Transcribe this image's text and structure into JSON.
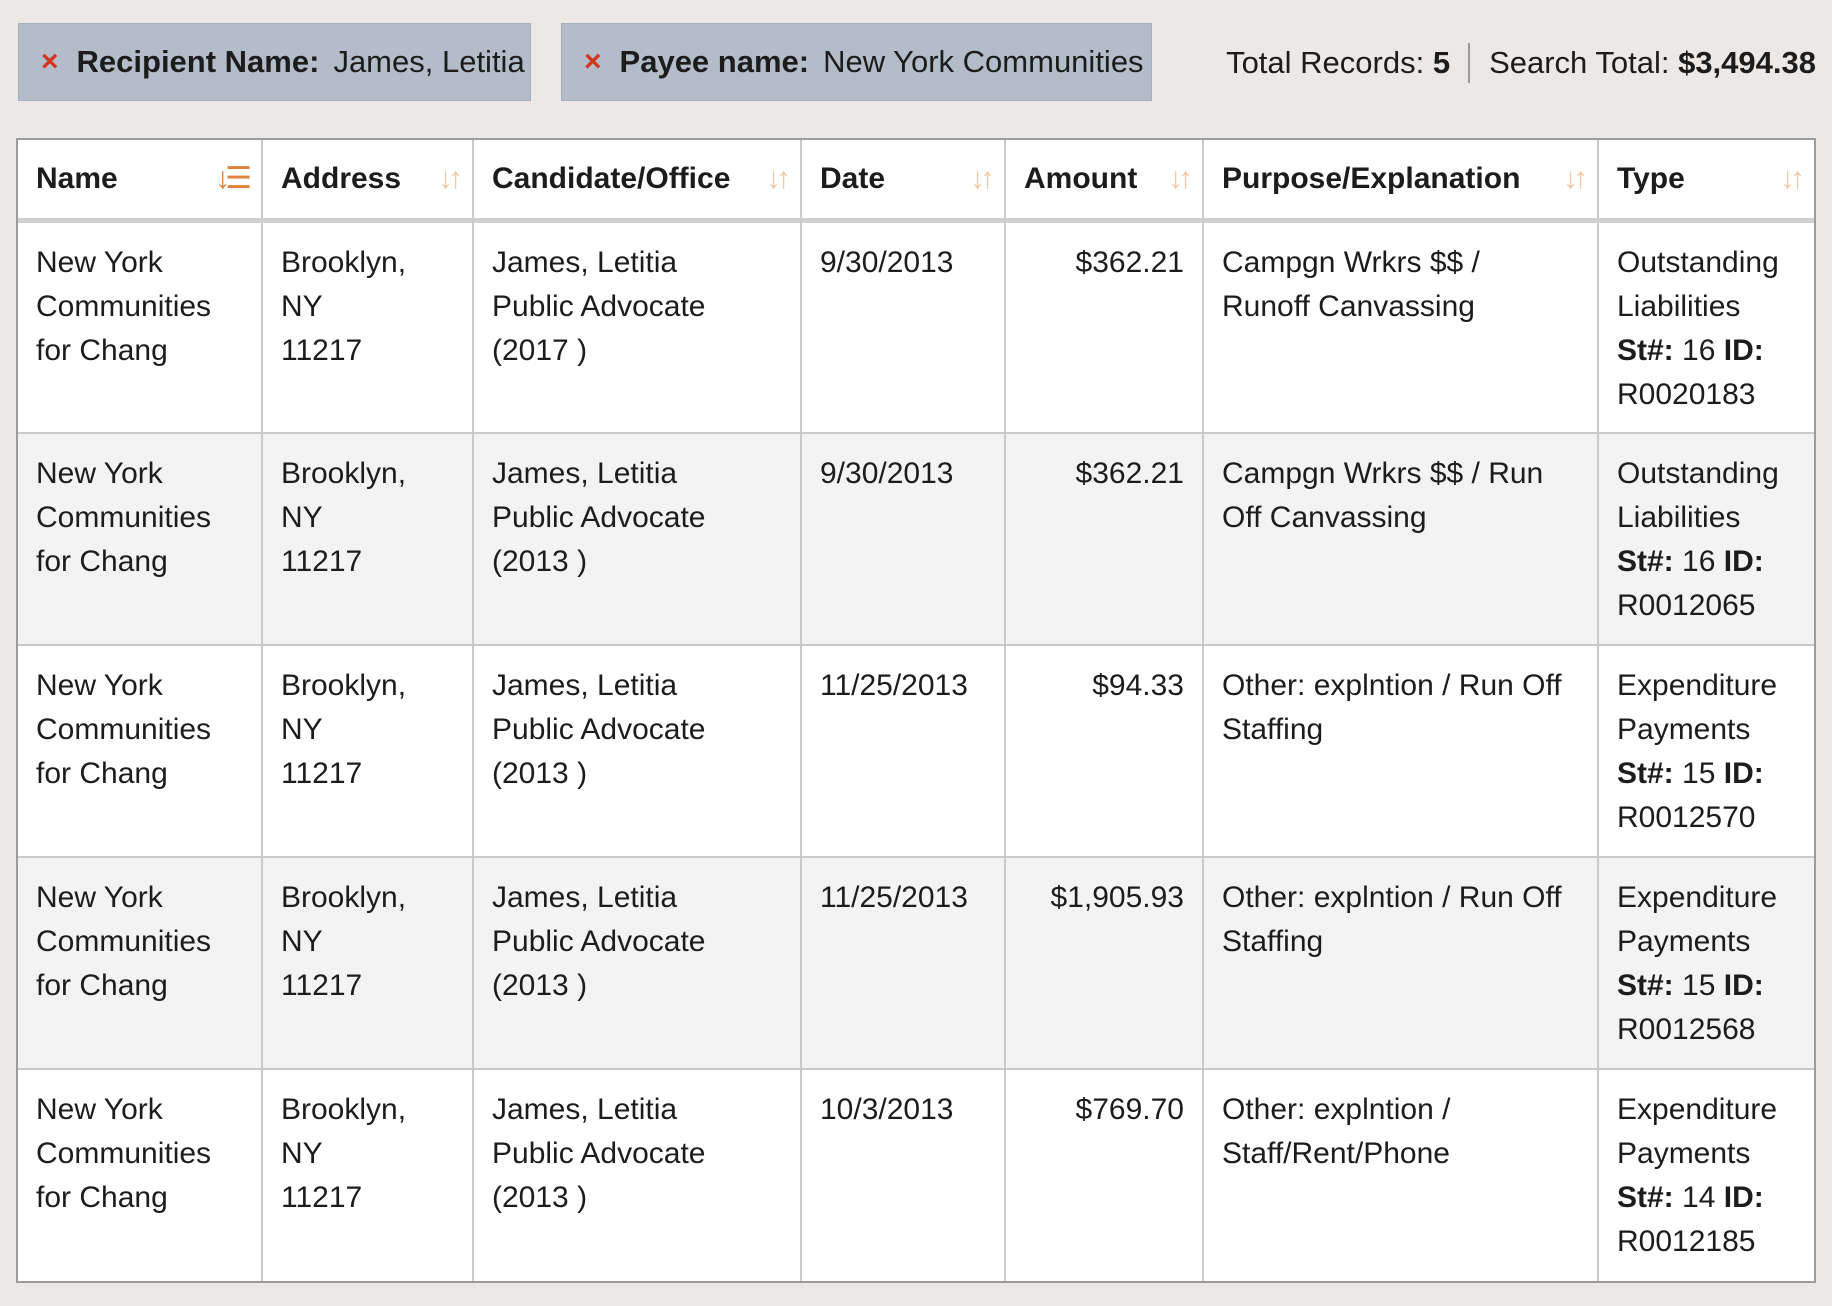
{
  "filters": [
    {
      "label": "Recipient Name:",
      "value": "James, Letitia",
      "remove_icon": "×"
    },
    {
      "label": "Payee name:",
      "value": "New York Communities",
      "remove_icon": "×"
    }
  ],
  "totals": {
    "records_label": "Total Records:",
    "records_value": "5",
    "search_label": "Search Total:",
    "search_value": "$3,494.38"
  },
  "table": {
    "columns": [
      {
        "label": "Name",
        "sort_icon": "↓☰",
        "sort_state": "active"
      },
      {
        "label": "Address",
        "sort_icon": "↓↑",
        "sort_state": "inactive"
      },
      {
        "label": "Candidate/Office",
        "sort_icon": "↓↑",
        "sort_state": "inactive"
      },
      {
        "label": "Date",
        "sort_icon": "↓↑",
        "sort_state": "inactive"
      },
      {
        "label": "Amount",
        "sort_icon": "↓↑",
        "sort_state": "inactive"
      },
      {
        "label": "Purpose/Explanation",
        "sort_icon": "↓↑",
        "sort_state": "inactive"
      },
      {
        "label": "Type",
        "sort_icon": "↓↑",
        "sort_state": "inactive"
      }
    ],
    "rows": [
      {
        "name": [
          "New York",
          "Communities",
          "for Chang"
        ],
        "address": [
          "Brooklyn, NY",
          "11217"
        ],
        "candidate": [
          "James, Letitia",
          "Public Advocate",
          "(2017 )"
        ],
        "date": "9/30/2013",
        "amount": "$362.21",
        "purpose": [
          "Campgn Wrkrs $$ /",
          "Runoff Canvassing"
        ],
        "type": [
          "Outstanding",
          "Liabilities"
        ],
        "st_label": "St#:",
        "st_value": "16",
        "id_label": "ID:",
        "id_value": "R0020183"
      },
      {
        "name": [
          "New York",
          "Communities",
          "for Chang"
        ],
        "address": [
          "Brooklyn, NY",
          "11217"
        ],
        "candidate": [
          "James, Letitia",
          "Public Advocate",
          "(2013 )"
        ],
        "date": "9/30/2013",
        "amount": "$362.21",
        "purpose": [
          "Campgn Wrkrs $$ / Run",
          "Off Canvassing"
        ],
        "type": [
          "Outstanding",
          "Liabilities"
        ],
        "st_label": "St#:",
        "st_value": "16",
        "id_label": "ID:",
        "id_value": "R0012065"
      },
      {
        "name": [
          "New York",
          "Communities",
          "for Chang"
        ],
        "address": [
          "Brooklyn, NY",
          "11217"
        ],
        "candidate": [
          "James, Letitia",
          "Public Advocate",
          "(2013 )"
        ],
        "date": "11/25/2013",
        "amount": "$94.33",
        "purpose": [
          "Other: explntion / Run Off",
          "Staffing"
        ],
        "type": [
          "Expenditure",
          "Payments"
        ],
        "st_label": "St#:",
        "st_value": "15",
        "id_label": "ID:",
        "id_value": "R0012570"
      },
      {
        "name": [
          "New York",
          "Communities",
          "for Chang"
        ],
        "address": [
          "Brooklyn, NY",
          "11217"
        ],
        "candidate": [
          "James, Letitia",
          "Public Advocate",
          "(2013 )"
        ],
        "date": "11/25/2013",
        "amount": "$1,905.93",
        "purpose": [
          "Other: explntion / Run Off",
          "Staffing"
        ],
        "type": [
          "Expenditure",
          "Payments"
        ],
        "st_label": "St#:",
        "st_value": "15",
        "id_label": "ID:",
        "id_value": "R0012568"
      },
      {
        "name": [
          "New York",
          "Communities",
          "for Chang"
        ],
        "address": [
          "Brooklyn, NY",
          "11217"
        ],
        "candidate": [
          "James, Letitia",
          "Public Advocate",
          "(2013 )"
        ],
        "date": "10/3/2013",
        "amount": "$769.70",
        "purpose": [
          "Other: explntion /",
          "Staff/Rent/Phone"
        ],
        "type": [
          "Expenditure",
          "Payments"
        ],
        "st_label": "St#:",
        "st_value": "14",
        "id_label": "ID:",
        "id_value": "R0012185"
      }
    ]
  },
  "colors": {
    "page_background": "#ebe8e6",
    "chip_background": "#b3bcc8",
    "remove_icon": "#d4351c",
    "sort_active": "#e0813a",
    "sort_inactive": "#f3c8a2",
    "row_alt": "#f3f3f3"
  }
}
